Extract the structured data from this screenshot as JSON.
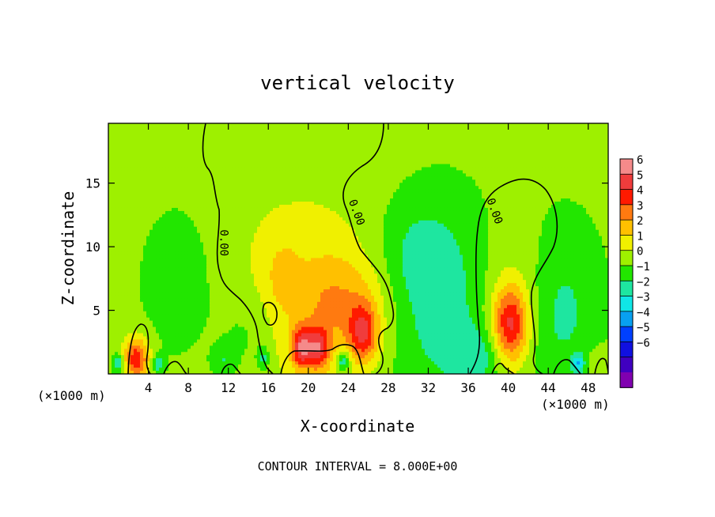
{
  "chart_data": {
    "type": "heatmap",
    "title": "vertical velocity",
    "xlabel": "X-coordinate",
    "ylabel": "Z-coordinate",
    "x_unit_label": "(×1000 m)",
    "x_unit_label_right": "(×1000 m)",
    "footer": "CONTOUR INTERVAL = 8.000E+00",
    "xlim": [
      0,
      50
    ],
    "ylim": [
      0,
      19.7
    ],
    "x_ticks": [
      4,
      8,
      12,
      16,
      20,
      24,
      28,
      32,
      36,
      40,
      44,
      48
    ],
    "y_ticks": [
      5,
      10,
      15
    ],
    "background_value": 0.2,
    "colorbar": {
      "levels": [
        6,
        5,
        4,
        3,
        2,
        1,
        0,
        -1,
        -2,
        -3,
        -4,
        -5,
        -6
      ],
      "colors": [
        "#f58a8a",
        "#f03c3c",
        "#ff1a00",
        "#ff7a10",
        "#ffc000",
        "#f0f000",
        "#9ef000",
        "#22e600",
        "#1ee6a0",
        "#10e6e6",
        "#08a0f0",
        "#0040ff",
        "#1010e0",
        "#4000c0",
        "#8000b0"
      ]
    },
    "features": [
      {
        "x": 19,
        "z": 6.5,
        "sx": 8.0,
        "sz": 7.0,
        "value": 1.3
      },
      {
        "x": 23.5,
        "z": 5.5,
        "sx": 3.5,
        "sz": 2.8,
        "value": 2.0
      },
      {
        "x": 25.5,
        "z": 3.2,
        "sx": 1.0,
        "sz": 1.6,
        "value": 3.8
      },
      {
        "x": 21,
        "z": 2.0,
        "sx": 0.8,
        "sz": 1.2,
        "value": 4.0
      },
      {
        "x": 19.3,
        "z": 2.0,
        "sx": 0.7,
        "sz": 1.1,
        "value": 4.5
      },
      {
        "x": 17.5,
        "z": 7.8,
        "sx": 1.0,
        "sz": 1.6,
        "value": 1.2
      },
      {
        "x": 40.2,
        "z": 3.8,
        "sx": 1.3,
        "sz": 2.2,
        "value": 5.2
      },
      {
        "x": 40.5,
        "z": 8.0,
        "sx": 2.5,
        "sz": 3.0,
        "value": 0.6
      },
      {
        "x": 2.8,
        "z": 1.2,
        "sx": 0.9,
        "sz": 1.2,
        "value": 4.5
      },
      {
        "x": 8.0,
        "z": 7.0,
        "sx": 3.5,
        "sz": 5.0,
        "value": -1.0
      },
      {
        "x": 32.5,
        "z": 5.5,
        "sx": 4.0,
        "sz": 5.5,
        "value": -1.9
      },
      {
        "x": 30.5,
        "z": 9.5,
        "sx": 3.0,
        "sz": 3.0,
        "value": -0.9
      },
      {
        "x": 45.5,
        "z": 5.0,
        "sx": 2.5,
        "sz": 4.5,
        "value": -1.4
      },
      {
        "x": 14.0,
        "z": 3.0,
        "sx": 2.0,
        "sz": 2.5,
        "value": -1.0
      },
      {
        "x": 23.5,
        "z": 1.0,
        "sx": 0.5,
        "sz": 0.6,
        "value": -3.0
      },
      {
        "x": 1.0,
        "z": 0.8,
        "sx": 0.4,
        "sz": 0.5,
        "value": -2.5
      },
      {
        "x": 5.0,
        "z": 0.8,
        "sx": 0.4,
        "sz": 0.5,
        "value": -2.0
      },
      {
        "x": 15.5,
        "z": 1.2,
        "sx": 0.4,
        "sz": 0.6,
        "value": -1.8
      },
      {
        "x": 47.0,
        "z": 0.8,
        "sx": 0.4,
        "sz": 0.5,
        "value": -2.5
      },
      {
        "x": 49.0,
        "z": 1.0,
        "sx": 0.7,
        "sz": 0.8,
        "value": 1.0
      },
      {
        "x": 37.0,
        "z": 1.5,
        "sx": 2.0,
        "sz": 1.5,
        "value": -1.4
      },
      {
        "x": 11.5,
        "z": 1.0,
        "sx": 0.8,
        "sz": 0.8,
        "value": -1.2
      }
    ],
    "zero_contour_labels": [
      {
        "text": "0.00",
        "x": 11.2,
        "z": 10.3
      },
      {
        "text": "0.00",
        "x": 24.5,
        "z": 12.6
      },
      {
        "text": "0.00",
        "x": 38.3,
        "z": 12.7
      }
    ]
  }
}
